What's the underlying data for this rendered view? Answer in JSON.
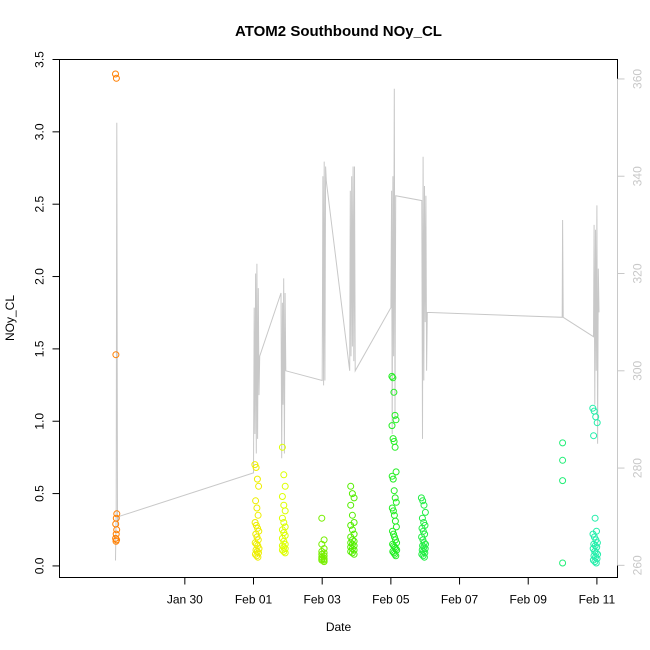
{
  "chart_data": {
    "type": "scatter",
    "title": "ATOM2 Southbound NOy_CL",
    "xlabel": "Date",
    "ylabel": "NOy_CL",
    "x_range_days": [
      26.35,
      42.6
    ],
    "ylim": [
      -0.08,
      3.5
    ],
    "y2lim": [
      257.5,
      364.0
    ],
    "x_ticks": [
      {
        "day": 30,
        "label": "Jan 30"
      },
      {
        "day": 32,
        "label": "Feb 01"
      },
      {
        "day": 34,
        "label": "Feb 03"
      },
      {
        "day": 36,
        "label": "Feb 05"
      },
      {
        "day": 38,
        "label": "Feb 07"
      },
      {
        "day": 40,
        "label": "Feb 09"
      },
      {
        "day": 42,
        "label": "Feb 11"
      }
    ],
    "y_ticks": [
      "0.0",
      "0.5",
      "1.0",
      "1.5",
      "2.0",
      "2.5",
      "3.0",
      "3.5"
    ],
    "y2_ticks": [
      "260",
      "280",
      "300",
      "320",
      "340",
      "360"
    ],
    "secondary_line_color": "#c8c8c8",
    "point_clusters": [
      {
        "x_center": 28.0,
        "x_spread": 0.02,
        "color": "#ff7f00",
        "values": [
          3.4,
          3.37,
          1.46,
          0.36,
          0.33,
          0.29,
          0.25,
          0.22,
          0.19,
          0.18,
          0.17
        ]
      },
      {
        "x_center": 32.1,
        "x_spread": 0.06,
        "color": "#eeee00",
        "values": [
          0.7,
          0.68,
          0.6,
          0.55,
          0.45,
          0.4,
          0.35,
          0.3,
          0.28,
          0.26,
          0.24,
          0.22,
          0.2,
          0.18,
          0.16,
          0.15,
          0.14,
          0.12,
          0.11,
          0.1,
          0.09,
          0.08,
          0.07,
          0.06
        ]
      },
      {
        "x_center": 32.9,
        "x_spread": 0.06,
        "color": "#ddff00",
        "values": [
          0.82,
          0.63,
          0.55,
          0.48,
          0.42,
          0.38,
          0.33,
          0.3,
          0.27,
          0.25,
          0.23,
          0.21,
          0.19,
          0.17,
          0.15,
          0.14,
          0.13,
          0.12,
          0.11,
          0.1,
          0.09
        ]
      },
      {
        "x_center": 34.05,
        "x_spread": 0.06,
        "color": "#77ee00",
        "values": [
          0.33,
          0.18,
          0.15,
          0.12,
          0.1,
          0.09,
          0.08,
          0.07,
          0.06,
          0.05,
          0.05,
          0.04,
          0.04,
          0.03
        ]
      },
      {
        "x_center": 34.9,
        "x_spread": 0.07,
        "color": "#55ee00",
        "values": [
          0.55,
          0.5,
          0.47,
          0.42,
          0.35,
          0.3,
          0.28,
          0.25,
          0.22,
          0.2,
          0.18,
          0.17,
          0.16,
          0.15,
          0.14,
          0.13,
          0.12,
          0.11,
          0.1,
          0.09,
          0.08
        ]
      },
      {
        "x_center": 36.1,
        "x_spread": 0.07,
        "color": "#22ee22",
        "values": [
          1.31,
          1.3,
          1.2,
          1.04,
          1.01,
          0.97,
          0.88,
          0.86,
          0.82,
          0.65,
          0.62,
          0.6,
          0.52,
          0.47,
          0.44,
          0.4,
          0.38,
          0.35,
          0.31,
          0.27,
          0.24,
          0.22,
          0.2,
          0.18,
          0.16,
          0.15,
          0.14,
          0.13,
          0.12,
          0.11,
          0.1,
          0.09,
          0.08,
          0.07
        ]
      },
      {
        "x_center": 36.95,
        "x_spread": 0.06,
        "color": "#22ee44",
        "values": [
          0.47,
          0.45,
          0.42,
          0.37,
          0.33,
          0.3,
          0.28,
          0.26,
          0.24,
          0.22,
          0.2,
          0.18,
          0.16,
          0.15,
          0.14,
          0.13,
          0.12,
          0.11,
          0.1,
          0.09,
          0.08,
          0.07,
          0.06
        ]
      },
      {
        "x_center": 41.0,
        "x_spread": 0.0,
        "color": "#22ee77",
        "values": [
          0.85,
          0.73,
          0.59,
          0.02
        ]
      },
      {
        "x_center": 41.95,
        "x_spread": 0.07,
        "color": "#22eeaa",
        "values": [
          1.09,
          1.07,
          1.03,
          0.99,
          0.9,
          0.33,
          0.24,
          0.22,
          0.2,
          0.18,
          0.16,
          0.15,
          0.14,
          0.13,
          0.12,
          0.1,
          0.09,
          0.08,
          0.07,
          0.06,
          0.05,
          0.04,
          0.03,
          0.02
        ]
      }
    ],
    "secondary_line": [
      [
        27.98,
        261
      ],
      [
        28.0,
        272
      ],
      [
        28.02,
        351
      ],
      [
        28.04,
        268
      ],
      [
        28.06,
        270
      ],
      [
        32.0,
        279
      ],
      [
        32.02,
        313
      ],
      [
        32.04,
        287
      ],
      [
        32.06,
        320
      ],
      [
        32.08,
        283
      ],
      [
        32.1,
        322
      ],
      [
        32.12,
        286
      ],
      [
        32.14,
        317
      ],
      [
        32.16,
        295
      ],
      [
        32.18,
        303
      ],
      [
        32.8,
        316
      ],
      [
        32.82,
        282
      ],
      [
        32.84,
        314
      ],
      [
        32.86,
        293
      ],
      [
        32.88,
        319
      ],
      [
        32.9,
        283
      ],
      [
        32.92,
        316
      ],
      [
        32.94,
        300
      ],
      [
        34.0,
        298
      ],
      [
        34.02,
        340
      ],
      [
        34.04,
        297
      ],
      [
        34.06,
        343
      ],
      [
        34.08,
        298
      ],
      [
        34.1,
        342
      ],
      [
        34.12,
        339
      ],
      [
        34.8,
        300
      ],
      [
        34.82,
        337
      ],
      [
        34.84,
        303
      ],
      [
        34.86,
        340
      ],
      [
        34.88,
        305
      ],
      [
        34.9,
        342
      ],
      [
        34.92,
        302
      ],
      [
        34.94,
        342
      ],
      [
        34.96,
        300
      ],
      [
        36.0,
        313
      ],
      [
        36.02,
        337
      ],
      [
        36.04,
        287
      ],
      [
        36.06,
        340
      ],
      [
        36.08,
        303
      ],
      [
        36.1,
        358
      ],
      [
        36.12,
        290
      ],
      [
        36.14,
        336
      ],
      [
        36.9,
        335
      ],
      [
        36.92,
        286
      ],
      [
        36.94,
        344
      ],
      [
        36.96,
        298
      ],
      [
        36.98,
        338
      ],
      [
        37.0,
        310
      ],
      [
        37.02,
        336
      ],
      [
        37.04,
        300
      ],
      [
        37.06,
        312
      ],
      [
        40.99,
        311
      ],
      [
        41.0,
        331
      ],
      [
        41.02,
        311
      ],
      [
        41.9,
        307
      ],
      [
        41.92,
        330
      ],
      [
        41.94,
        293
      ],
      [
        41.96,
        329
      ],
      [
        41.98,
        300
      ],
      [
        42.0,
        334
      ],
      [
        42.02,
        285
      ],
      [
        42.04,
        321
      ],
      [
        42.06,
        312
      ]
    ]
  }
}
